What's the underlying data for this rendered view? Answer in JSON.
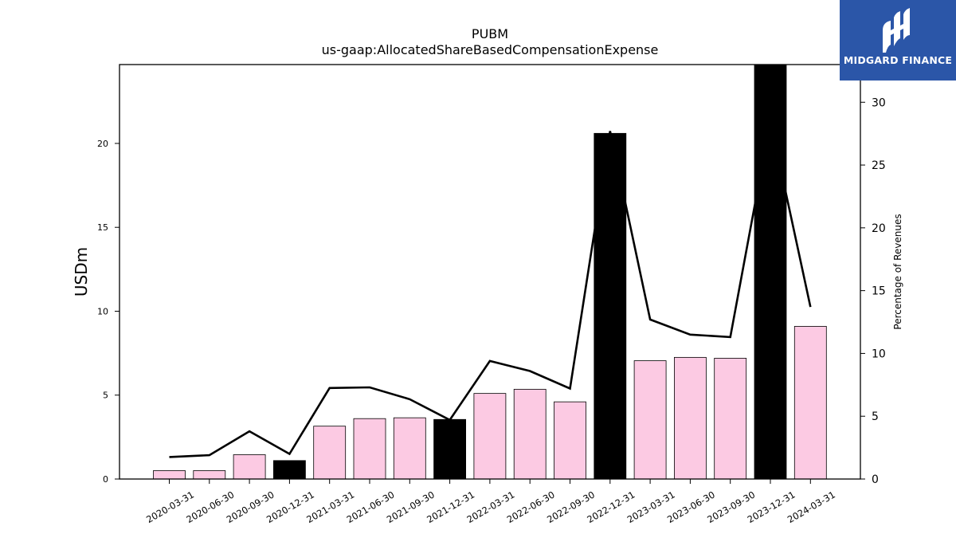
{
  "chart_data": {
    "type": "bar",
    "title": "PUBM",
    "subtitle": "us-gaap:AllocatedShareBasedCompensationExpense",
    "ylabel": "USDm",
    "y2label": "Percentage of Revenues",
    "ylim": [
      0,
      24.7
    ],
    "y2lim": [
      0,
      33
    ],
    "yticks": [
      0,
      5,
      10,
      15,
      20
    ],
    "y2ticks": [
      0,
      5,
      10,
      15,
      20,
      25,
      30
    ],
    "grid": false,
    "categories": [
      "2020-03-31",
      "2020-06-30",
      "2020-09-30",
      "2020-12-31",
      "2021-03-31",
      "2021-06-30",
      "2021-09-30",
      "2021-12-31",
      "2022-03-31",
      "2022-06-30",
      "2022-09-30",
      "2022-12-31",
      "2023-03-31",
      "2023-06-30",
      "2023-09-30",
      "2023-12-31",
      "2024-03-31"
    ],
    "series": [
      {
        "axis": "left",
        "type": "bar",
        "values": [
          0.5,
          0.5,
          1.45,
          1.1,
          3.15,
          3.6,
          3.65,
          3.55,
          5.1,
          5.35,
          4.6,
          20.6,
          7.05,
          7.25,
          7.2,
          24.7,
          9.1
        ],
        "colors": [
          "#fccae3",
          "#fccae3",
          "#fccae3",
          "#000000",
          "#fccae3",
          "#fccae3",
          "#fccae3",
          "#000000",
          "#fccae3",
          "#fccae3",
          "#fccae3",
          "#000000",
          "#fccae3",
          "#fccae3",
          "#fccae3",
          "#000000",
          "#fccae3"
        ]
      },
      {
        "axis": "right",
        "type": "line",
        "color": "#000000",
        "values": [
          1.75,
          1.9,
          3.8,
          2.0,
          7.25,
          7.3,
          6.35,
          4.7,
          9.4,
          8.6,
          7.2,
          27.7,
          12.7,
          11.5,
          11.3,
          28.5,
          13.7
        ]
      }
    ]
  },
  "logo": {
    "text": "MIDGARD FINANCE",
    "background": "#2b56a8"
  }
}
